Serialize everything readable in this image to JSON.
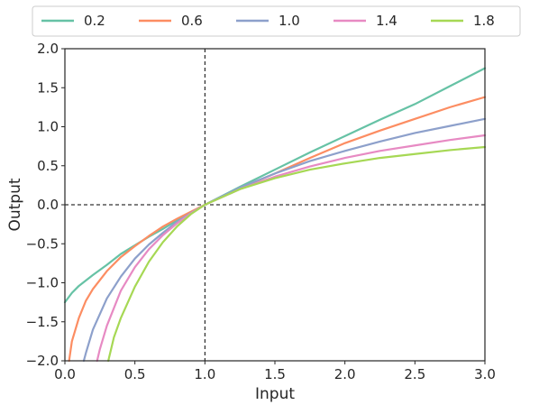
{
  "chart_data": {
    "type": "line",
    "xlabel": "Input",
    "ylabel": "Output",
    "xlim": [
      0.0,
      3.0
    ],
    "ylim": [
      -2.0,
      2.0
    ],
    "xticks": [
      "0.0",
      "0.5",
      "1.0",
      "1.5",
      "2.0",
      "2.5",
      "3.0"
    ],
    "yticks": [
      "2.0",
      "1.5",
      "1.0",
      "0.5",
      "0.0",
      "−0.5",
      "−1.0",
      "−1.5",
      "−2.0"
    ],
    "xtick_values": [
      0.0,
      0.5,
      1.0,
      1.5,
      2.0,
      2.5,
      3.0
    ],
    "ytick_values": [
      2.0,
      1.5,
      1.0,
      0.5,
      0.0,
      -0.5,
      -1.0,
      -1.5,
      -2.0
    ],
    "grid": false,
    "legend_position": "top",
    "reference_lines": {
      "vertical_x": 1.0,
      "horizontal_y": 0.0,
      "style": "dashed"
    },
    "series": [
      {
        "name": "0.2",
        "color": "#66c2a5",
        "x": [
          0.0,
          0.05,
          0.1,
          0.2,
          0.3,
          0.4,
          0.5,
          0.6,
          0.7,
          0.8,
          0.9,
          1.0,
          1.25,
          1.5,
          1.75,
          2.0,
          2.25,
          2.5,
          2.75,
          3.0
        ],
        "y": [
          -1.25,
          -1.13,
          -1.04,
          -0.9,
          -0.77,
          -0.63,
          -0.52,
          -0.41,
          -0.31,
          -0.2,
          -0.1,
          0.0,
          0.23,
          0.45,
          0.67,
          0.88,
          1.09,
          1.29,
          1.52,
          1.75
        ]
      },
      {
        "name": "0.6",
        "color": "#fc8d62",
        "x": [
          0.03,
          0.05,
          0.1,
          0.15,
          0.2,
          0.3,
          0.4,
          0.5,
          0.6,
          0.7,
          0.8,
          0.9,
          1.0,
          1.25,
          1.5,
          1.75,
          2.0,
          2.25,
          2.5,
          2.75,
          3.0
        ],
        "y": [
          -2.0,
          -1.75,
          -1.45,
          -1.23,
          -1.08,
          -0.85,
          -0.67,
          -0.53,
          -0.4,
          -0.28,
          -0.18,
          -0.09,
          0.0,
          0.21,
          0.4,
          0.6,
          0.79,
          0.95,
          1.1,
          1.25,
          1.38
        ]
      },
      {
        "name": "1.0",
        "color": "#8da0cb",
        "x": [
          0.135,
          0.15,
          0.2,
          0.3,
          0.4,
          0.5,
          0.6,
          0.7,
          0.8,
          0.9,
          1.0,
          1.25,
          1.5,
          1.75,
          2.0,
          2.25,
          2.5,
          2.75,
          3.0
        ],
        "y": [
          -2.0,
          -1.9,
          -1.6,
          -1.2,
          -0.92,
          -0.69,
          -0.51,
          -0.36,
          -0.22,
          -0.105,
          0.0,
          0.22,
          0.4,
          0.56,
          0.69,
          0.81,
          0.92,
          1.01,
          1.1
        ]
      },
      {
        "name": "1.4",
        "color": "#e78ac3",
        "x": [
          0.23,
          0.25,
          0.3,
          0.4,
          0.5,
          0.6,
          0.7,
          0.8,
          0.9,
          1.0,
          1.25,
          1.5,
          1.75,
          2.0,
          2.25,
          2.5,
          2.75,
          3.0
        ],
        "y": [
          -2.0,
          -1.85,
          -1.55,
          -1.1,
          -0.8,
          -0.57,
          -0.39,
          -0.24,
          -0.11,
          0.0,
          0.2,
          0.36,
          0.49,
          0.6,
          0.69,
          0.76,
          0.83,
          0.89
        ]
      },
      {
        "name": "1.8",
        "color": "#a6d854",
        "x": [
          0.31,
          0.35,
          0.4,
          0.5,
          0.6,
          0.7,
          0.8,
          0.9,
          1.0,
          1.25,
          1.5,
          1.75,
          2.0,
          2.25,
          2.5,
          2.75,
          3.0
        ],
        "y": [
          -2.0,
          -1.7,
          -1.45,
          -1.05,
          -0.73,
          -0.48,
          -0.28,
          -0.12,
          0.0,
          0.2,
          0.34,
          0.45,
          0.53,
          0.6,
          0.65,
          0.7,
          0.74
        ]
      }
    ]
  }
}
